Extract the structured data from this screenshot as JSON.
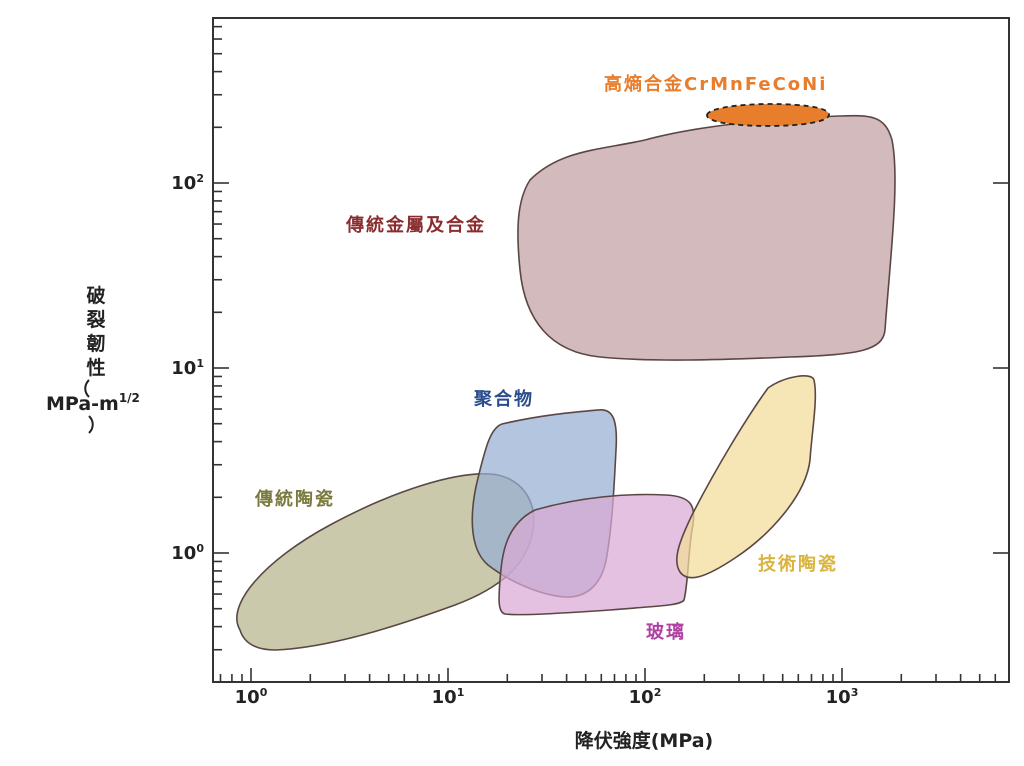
{
  "chart_data": {
    "type": "ashby-region-map",
    "xlabel": "降伏強度(MPa)",
    "ylabel": "破裂韌性(MPa-m1/2)",
    "ylabel_chars": [
      "破",
      "裂",
      "韌",
      "性"
    ],
    "ylabel_unit": "MPa-m",
    "ylabel_unit_exp": "1/2",
    "x_scale": "log",
    "y_scale": "log",
    "xlim": [
      0.7,
      800
    ],
    "ylim": [
      0.3,
      1000
    ],
    "x_ticks": [
      {
        "value": 1,
        "base": "10",
        "exp": "0"
      },
      {
        "value": 10,
        "base": "10",
        "exp": "1"
      },
      {
        "value": 100,
        "base": "10",
        "exp": "2"
      },
      {
        "value": 1000,
        "base": "10",
        "exp": "3"
      }
    ],
    "y_ticks": [
      {
        "value": 1,
        "base": "10",
        "exp": "0"
      },
      {
        "value": 10,
        "base": "10",
        "exp": "1"
      },
      {
        "value": 100,
        "base": "10",
        "exp": "2"
      }
    ],
    "regions": [
      {
        "label": "傳統陶瓷",
        "color": "#b5b48a",
        "label_color": "#7a7a3e",
        "x_range": [
          0.85,
          20
        ],
        "y_range": [
          0.3,
          2.75
        ]
      },
      {
        "label": "聚合物",
        "color": "#95aed3",
        "label_color": "#2a4c8c",
        "x_range": [
          15,
          70
        ],
        "y_range": [
          0.6,
          6.0
        ]
      },
      {
        "label": "玻璃",
        "color": "#d9a9d6",
        "label_color": "#b040a3",
        "x_range": [
          20,
          180
        ],
        "y_range": [
          0.46,
          2.0
        ]
      },
      {
        "label": "技術陶瓷",
        "color": "#f2dc98",
        "label_color": "#d9b440",
        "x_range": [
          140,
          800
        ],
        "y_range": [
          0.8,
          9.0
        ]
      },
      {
        "label": "傳統金屬及合金",
        "color": "#c29fa2",
        "label_color": "#8b2d2f",
        "x_range": [
          25,
          1000
        ],
        "y_range": [
          11,
          220
        ]
      },
      {
        "label": "高熵合金CrMnFeCoNi",
        "color": "#e87d2c",
        "label_color": "#e87d2c",
        "x_range": [
          200,
          1000
        ],
        "y_range": [
          200,
          300
        ]
      }
    ]
  }
}
